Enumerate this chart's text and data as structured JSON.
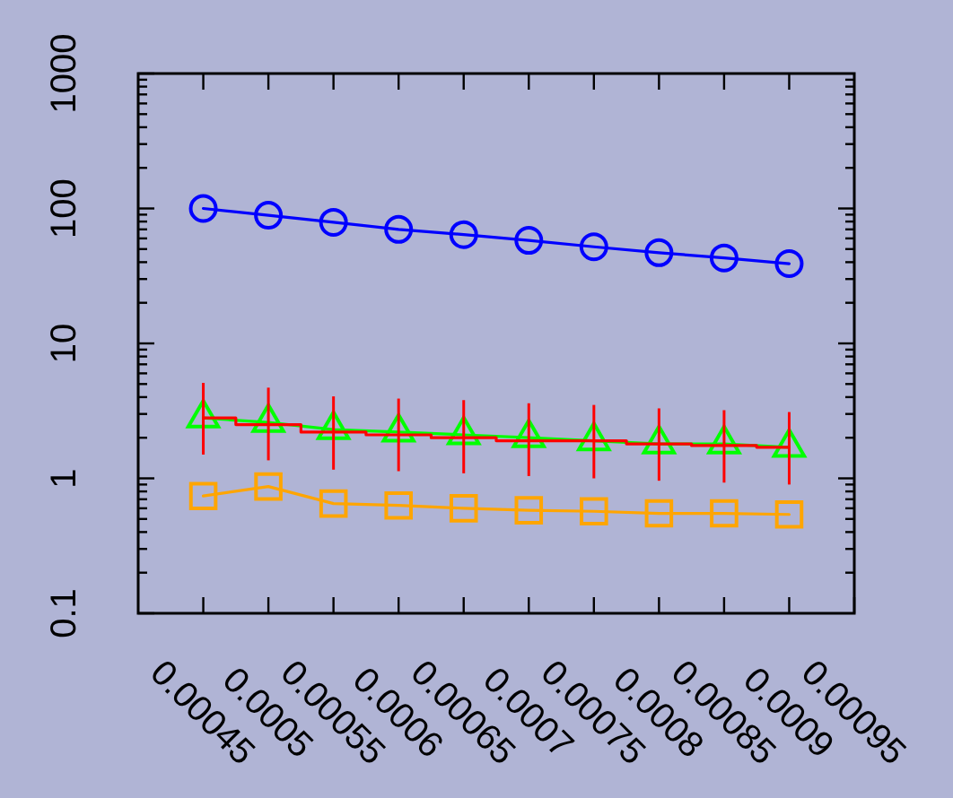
{
  "chart_data": {
    "type": "line",
    "log": true,
    "x": [
      0.00045,
      0.0005,
      0.00055,
      0.0006,
      0.00065,
      0.0007,
      0.00075,
      0.0008,
      0.00085,
      0.0009
    ],
    "xlim": [
      0.0004,
      0.00095
    ],
    "xticks": [
      0.00045,
      0.0005,
      0.00055,
      0.0006,
      0.00065,
      0.0007,
      0.00075,
      0.0008,
      0.00085,
      0.0009,
      0.00095
    ],
    "ylim": [
      0.1,
      1000
    ],
    "yticks": [
      0.1,
      {
        "value": 0.2,
        "label": null
      },
      {
        "value": 0.3,
        "label": null
      },
      {
        "value": 0.4,
        "label": null
      },
      {
        "value": 0.5,
        "label": null
      },
      {
        "value": 0.6,
        "label": null
      },
      {
        "value": 0.7,
        "label": null
      },
      {
        "value": 0.8,
        "label": null
      },
      {
        "value": 0.9,
        "label": null
      },
      1,
      {
        "value": 2,
        "label": null
      },
      {
        "value": 3,
        "label": null
      },
      {
        "value": 4,
        "label": null
      },
      {
        "value": 5,
        "label": null
      },
      {
        "value": 6,
        "label": null
      },
      {
        "value": 7,
        "label": null
      },
      {
        "value": 8,
        "label": null
      },
      {
        "value": 9,
        "label": null
      },
      10,
      {
        "value": 20,
        "label": null
      },
      {
        "value": 30,
        "label": null
      },
      {
        "value": 40,
        "label": null
      },
      {
        "value": 50,
        "label": null
      },
      {
        "value": 60,
        "label": null
      },
      {
        "value": 70,
        "label": null
      },
      {
        "value": 80,
        "label": null
      },
      {
        "value": 90,
        "label": null
      },
      100,
      {
        "value": 200,
        "label": null
      },
      {
        "value": 300,
        "label": null
      },
      {
        "value": 400,
        "label": null
      },
      {
        "value": 500,
        "label": null
      },
      {
        "value": 600,
        "label": null
      },
      {
        "value": 700,
        "label": null
      },
      {
        "value": 800,
        "label": null
      },
      {
        "value": 900,
        "label": null
      },
      1000
    ],
    "series": [
      {
        "type": "line",
        "color": "#0000ff",
        "marker": "circle",
        "values": [
          100,
          89,
          79,
          70,
          64,
          58,
          52,
          47,
          43,
          39
        ]
      },
      {
        "type": "line",
        "color": "#00ff00",
        "marker": "triangle",
        "values": [
          2.8,
          2.6,
          2.3,
          2.2,
          2.1,
          2.0,
          1.9,
          1.8,
          1.8,
          1.7
        ]
      },
      {
        "type": "step",
        "color": "#ff0000",
        "marker": "none",
        "values": [
          2.8,
          2.5,
          2.2,
          2.1,
          2.0,
          1.9,
          1.9,
          1.8,
          1.75,
          1.7
        ],
        "errors": [
          [
            1.5,
            5.1
          ],
          [
            1.36,
            4.7
          ],
          [
            1.16,
            4.05
          ],
          [
            1.13,
            3.9
          ],
          [
            1.09,
            3.8
          ],
          [
            1.04,
            3.6
          ],
          [
            1.0,
            3.5
          ],
          [
            0.96,
            3.3
          ],
          [
            0.93,
            3.2
          ],
          [
            0.9,
            3.1
          ]
        ]
      },
      {
        "type": "line",
        "color": "#ffa500",
        "marker": "square",
        "values": [
          0.74,
          0.87,
          0.65,
          0.63,
          0.6,
          0.58,
          0.57,
          0.55,
          0.55,
          0.54
        ]
      }
    ]
  }
}
